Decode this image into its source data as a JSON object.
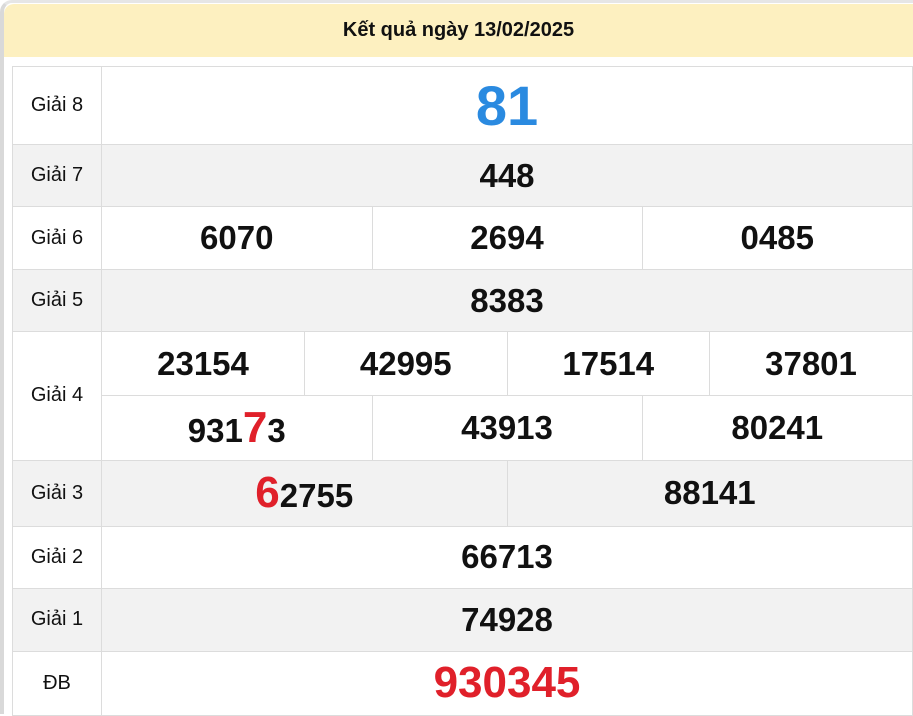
{
  "header": {
    "title": "Kết quả ngày 13/02/2025"
  },
  "colors": {
    "header_bg": "#fdf0c0",
    "giai8": "#2a8ae0",
    "special": "#e0202a",
    "highlight": "#e0202a"
  },
  "prizes": {
    "g8": {
      "label": "Giải 8",
      "values": [
        "81"
      ]
    },
    "g7": {
      "label": "Giải 7",
      "values": [
        "448"
      ]
    },
    "g6": {
      "label": "Giải 6",
      "values": [
        "6070",
        "2694",
        "0485"
      ]
    },
    "g5": {
      "label": "Giải 5",
      "values": [
        "8383"
      ]
    },
    "g4": {
      "label": "Giải 4",
      "values": [
        "23154",
        "42995",
        "17514",
        "37801",
        {
          "pre": "931",
          "hl": "7",
          "post": "3"
        },
        "43913",
        "80241"
      ]
    },
    "g3": {
      "label": "Giải 3",
      "values": [
        {
          "pre": "",
          "hl": "6",
          "post": "2755"
        },
        "88141"
      ]
    },
    "g2": {
      "label": "Giải 2",
      "values": [
        "66713"
      ]
    },
    "g1": {
      "label": "Giải 1",
      "values": [
        "74928"
      ]
    },
    "db": {
      "label": "ĐB",
      "values": [
        "930345"
      ]
    }
  }
}
